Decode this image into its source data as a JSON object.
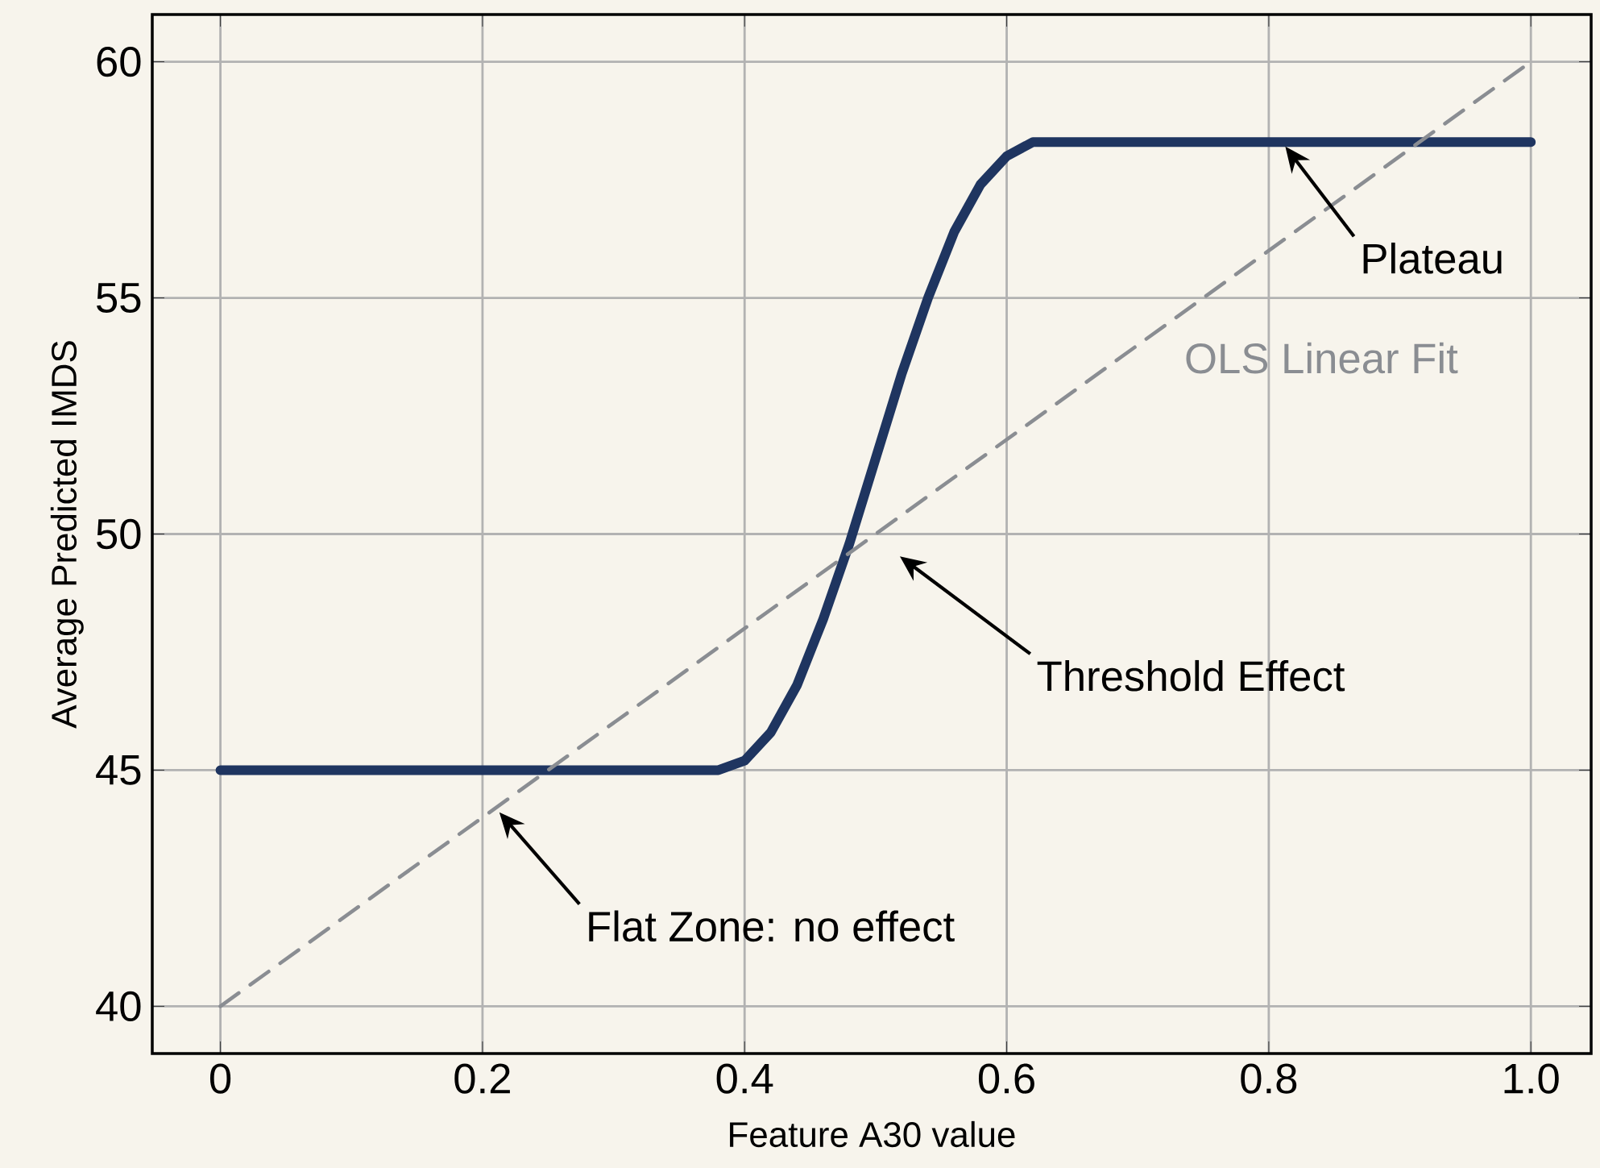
{
  "chart_data": {
    "type": "line",
    "xlabel": "Feature A30 value",
    "ylabel": "Average Predicted IMDS",
    "xlim": [
      -0.052,
      1.046
    ],
    "ylim": [
      39,
      61
    ],
    "xticks": [
      0,
      0.2,
      0.4,
      0.6,
      0.8,
      {
        "value": 1,
        "label": "1.0"
      }
    ],
    "yticks": [
      40,
      45,
      50,
      55,
      60
    ],
    "grid": true,
    "series": [
      {
        "color": "#1f3560",
        "x": [
          0,
          0.38,
          0.4,
          0.42,
          0.44,
          0.46,
          0.48,
          0.5,
          0.52,
          0.54,
          0.56,
          0.58,
          0.6,
          0.62,
          1.0
        ],
        "values": [
          45,
          45,
          45.2,
          45.8,
          46.8,
          48.2,
          49.8,
          51.6,
          53.4,
          55.0,
          56.4,
          57.4,
          58.0,
          58.3,
          58.3
        ]
      },
      {
        "name": "OLS Linear Fit",
        "color": "#8a8d92",
        "line_style": "dashed",
        "x": [
          0,
          1
        ],
        "values": [
          40,
          60
        ]
      }
    ],
    "annotations": [
      "Plateau",
      "Threshold Effect",
      "Flat Zone: no effect"
    ]
  }
}
